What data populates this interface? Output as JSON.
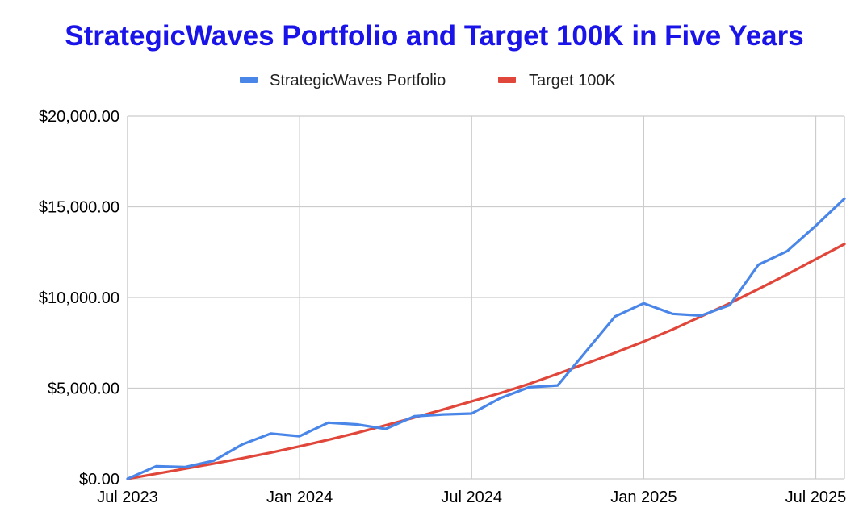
{
  "colors": {
    "title": "#1a14e8",
    "portfolio": "#4a86e8",
    "target": "#e0463a",
    "grid": "#cccccc",
    "axis_text": "#000000"
  },
  "chart_data": {
    "type": "line",
    "title": "StrategicWaves Portfolio and Target 100K in Five Years",
    "xlabel": "",
    "ylabel": "",
    "legend_position": "top",
    "x_unit": "months since Jul 2023",
    "xlim": [
      0,
      25
    ],
    "ylim": [
      0,
      20000
    ],
    "x_ticks": [
      {
        "x": 0,
        "label": "Jul 2023"
      },
      {
        "x": 6,
        "label": "Jan 2024"
      },
      {
        "x": 12,
        "label": "Jul 2024"
      },
      {
        "x": 18,
        "label": "Jan 2025"
      },
      {
        "x": 24,
        "label": "Jul 2025"
      }
    ],
    "y_ticks": [
      {
        "y": 0,
        "label": "$0.00"
      },
      {
        "y": 5000,
        "label": "$5,000.00"
      },
      {
        "y": 10000,
        "label": "$10,000.00"
      },
      {
        "y": 15000,
        "label": "$15,000.00"
      },
      {
        "y": 20000,
        "label": "$20,000.00"
      }
    ],
    "series": [
      {
        "name": "StrategicWaves Portfolio",
        "color": "#4a86e8",
        "x": [
          0,
          1,
          2,
          3,
          4,
          5,
          6,
          7,
          8,
          9,
          10,
          11,
          12,
          13,
          14,
          15,
          16,
          17,
          18,
          19,
          20,
          21,
          22,
          23,
          24,
          25
        ],
        "values": [
          0,
          700,
          650,
          1000,
          1900,
          2500,
          2350,
          3100,
          3000,
          2750,
          3450,
          3550,
          3600,
          4450,
          5050,
          5150,
          7050,
          8950,
          9680,
          9100,
          9000,
          9580,
          11800,
          12550,
          13950,
          15450
        ]
      },
      {
        "name": "Target 100K",
        "color": "#e0463a",
        "x": [
          0,
          1,
          2,
          3,
          4,
          5,
          6,
          7,
          8,
          9,
          10,
          11,
          12,
          13,
          14,
          15,
          16,
          17,
          18,
          19,
          20,
          21,
          22,
          23,
          24,
          25
        ],
        "values": [
          0,
          280,
          560,
          840,
          1140,
          1450,
          1790,
          2150,
          2540,
          2950,
          3380,
          3820,
          4270,
          4730,
          5230,
          5790,
          6370,
          6950,
          7570,
          8230,
          8950,
          9680,
          10460,
          11270,
          12110,
          12940
        ]
      }
    ]
  }
}
